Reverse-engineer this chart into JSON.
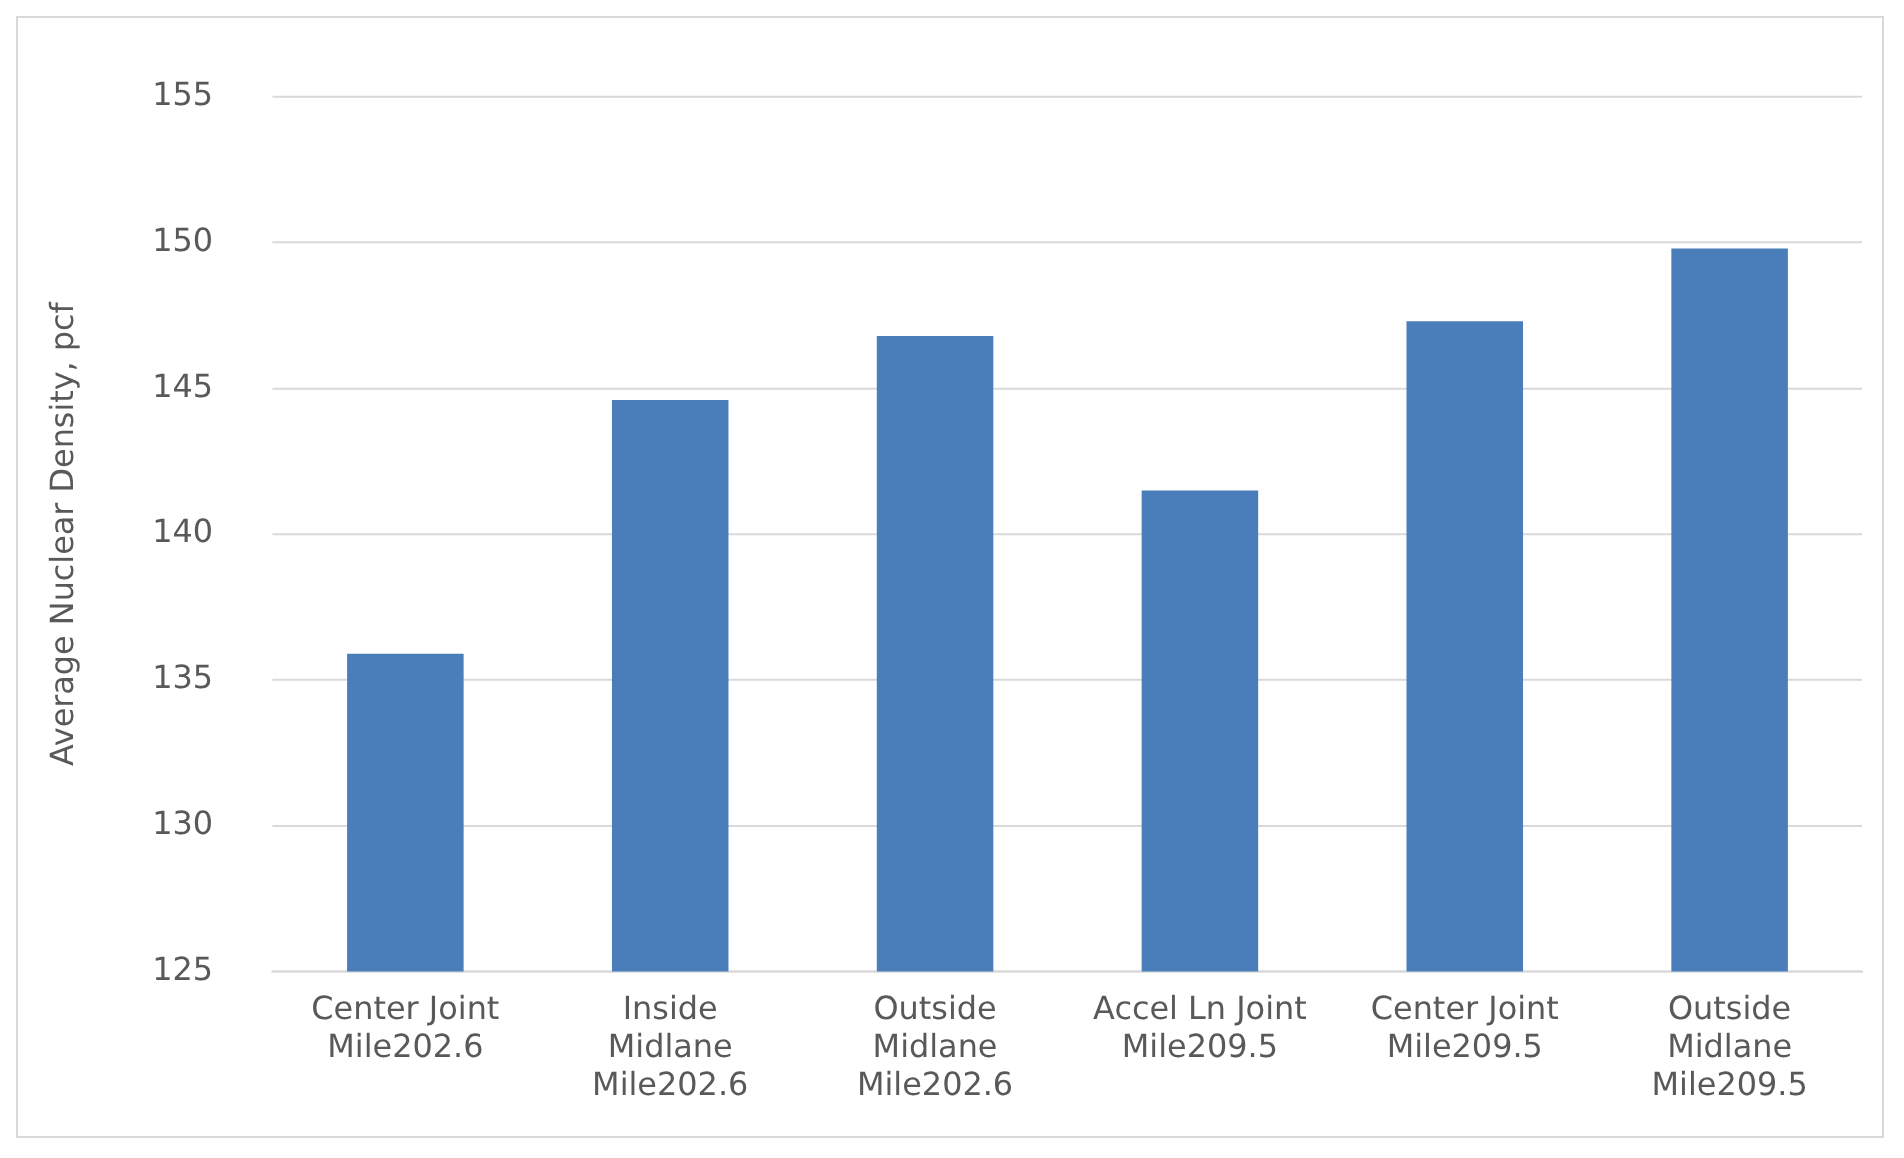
{
  "chart_data": {
    "type": "bar",
    "ylabel": "Average Nuclear Density, pcf",
    "categories": [
      "Center Joint\nMile202.6",
      "Inside\nMidlane\nMile202.6",
      "Outside\nMidlane\nMile202.6",
      "Accel Ln Joint\nMile209.5",
      "Center Joint\nMile209.5",
      "Outside\nMidlane\nMile209.5"
    ],
    "values": [
      135.9,
      144.6,
      146.8,
      141.5,
      147.3,
      149.8
    ],
    "color": "#4a7ebb",
    "ylim": [
      125,
      155
    ],
    "yticks": [
      125,
      130,
      135,
      140,
      145,
      150,
      155
    ],
    "grid": "y",
    "legend": false
  }
}
